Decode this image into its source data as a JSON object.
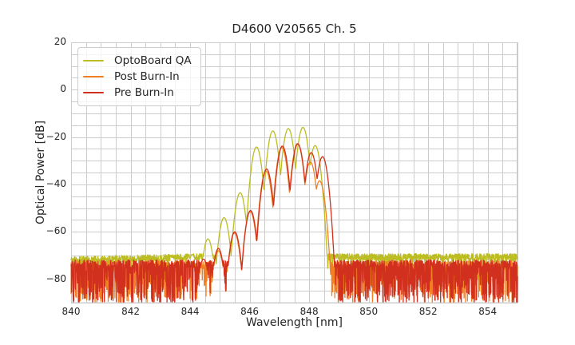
{
  "chart_data": {
    "type": "line",
    "title": "D4600 V20565 Ch. 5",
    "xlabel": "Wavelength [nm]",
    "ylabel": "Optical Power [dB]",
    "legend_position": "upper left",
    "grid": {
      "on": true,
      "color": "#cccccc",
      "minor_x_step_nm": 0.5,
      "minor_y_step_db": 5,
      "frame_color": "#cccccc"
    },
    "background_color": "#ffffff",
    "x_axis": {
      "min": 840,
      "max": 855,
      "ticks": [
        {
          "value": 840,
          "label": "840"
        },
        {
          "value": 842,
          "label": "842"
        },
        {
          "value": 844,
          "label": "844"
        },
        {
          "value": 846,
          "label": "846"
        },
        {
          "value": 848,
          "label": "848"
        },
        {
          "value": 850,
          "label": "850"
        },
        {
          "value": 852,
          "label": "852"
        },
        {
          "value": 854,
          "label": "854"
        }
      ]
    },
    "y_axis": {
      "min": -90,
      "max": 20,
      "ticks": [
        {
          "value": 20,
          "label": "20"
        },
        {
          "value": 0,
          "label": "0"
        },
        {
          "value": -20,
          "label": "−20"
        },
        {
          "value": -40,
          "label": "−40"
        },
        {
          "value": -60,
          "label": "−60"
        },
        {
          "value": -80,
          "label": "−80"
        }
      ]
    },
    "series": [
      {
        "name": "OptoBoard QA",
        "color": "#bcbd22",
        "peaks": [
          {
            "nm": 844.07,
            "db": -69.5
          },
          {
            "nm": 844.6,
            "db": -63.0
          },
          {
            "nm": 845.14,
            "db": -54.0
          },
          {
            "nm": 845.68,
            "db": -43.5
          },
          {
            "nm": 846.23,
            "db": -24.2
          },
          {
            "nm": 846.78,
            "db": -17.4
          },
          {
            "nm": 847.3,
            "db": -16.4
          },
          {
            "nm": 847.79,
            "db": -15.9
          },
          {
            "nm": 848.2,
            "db": -23.6
          }
        ],
        "lobe_half_width_nm": 0.27,
        "lobe_valley_depth_db": 21,
        "signal_range_nm": [
          844.3,
          848.62
        ],
        "noise_floor": {
          "base_db": -70.6,
          "jitter_db": 1.4,
          "spike_prob": 0.12,
          "spike_depth_db": 10,
          "ramp_start_nm": 840,
          "ramp_end_nm": 844.3,
          "ramp_delta_db": -1.2
        }
      },
      {
        "name": "Post Burn-In",
        "color": "#f28022",
        "peaks": [
          {
            "nm": 844.95,
            "db": -68.0
          },
          {
            "nm": 845.49,
            "db": -60.5
          },
          {
            "nm": 846.02,
            "db": -51.5
          },
          {
            "nm": 846.55,
            "db": -34.3
          },
          {
            "nm": 847.08,
            "db": -24.4
          },
          {
            "nm": 847.61,
            "db": -22.7
          },
          {
            "nm": 848.04,
            "db": -30.5
          },
          {
            "nm": 848.35,
            "db": -38.5
          }
        ],
        "lobe_half_width_nm": 0.27,
        "lobe_valley_depth_db": 21,
        "signal_range_nm": [
          844.8,
          848.71
        ],
        "noise_floor": {
          "base_db": -73.9,
          "jitter_db": 1.7,
          "spike_prob": 0.46,
          "spike_depth_db": 16,
          "ramp_start_nm": 0,
          "ramp_end_nm": 0,
          "ramp_delta_db": 0
        }
      },
      {
        "name": "Pre Burn-In",
        "color": "#d2301f",
        "peaks": [
          {
            "nm": 844.45,
            "db": -71.5
          },
          {
            "nm": 844.95,
            "db": -67.0
          },
          {
            "nm": 845.5,
            "db": -60.0
          },
          {
            "nm": 846.03,
            "db": -51.0
          },
          {
            "nm": 846.57,
            "db": -33.5
          },
          {
            "nm": 847.1,
            "db": -23.8
          },
          {
            "nm": 847.62,
            "db": -22.9
          },
          {
            "nm": 848.07,
            "db": -26.6
          },
          {
            "nm": 848.45,
            "db": -28.3
          }
        ],
        "lobe_half_width_nm": 0.27,
        "lobe_valley_depth_db": 21,
        "signal_range_nm": [
          844.8,
          848.86
        ],
        "noise_floor": {
          "base_db": -73.6,
          "jitter_db": 1.7,
          "spike_prob": 0.52,
          "spike_depth_db": 17,
          "ramp_start_nm": 0,
          "ramp_end_nm": 0,
          "ramp_delta_db": 0
        }
      }
    ]
  }
}
